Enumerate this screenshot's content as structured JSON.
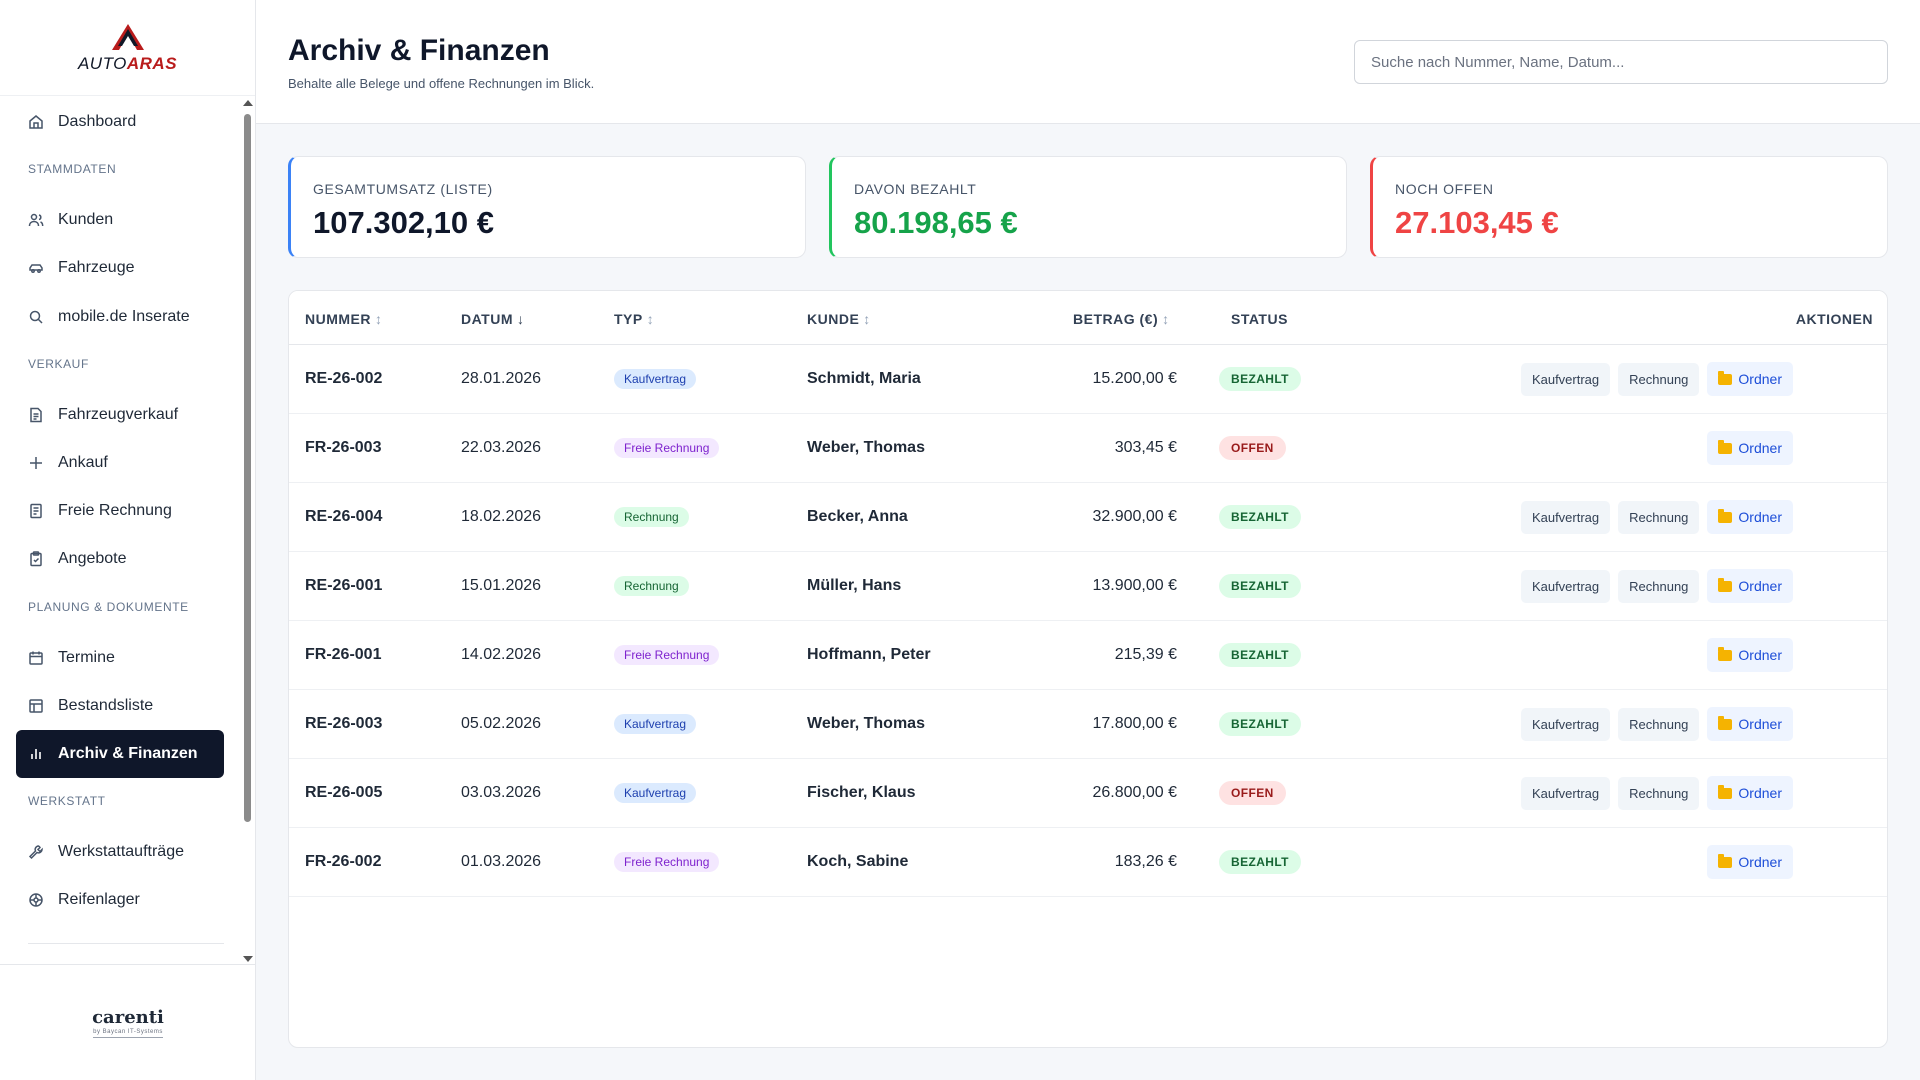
{
  "brand": {
    "logo_text_a": "AUTO",
    "logo_text_b": "ARAS",
    "footer_logo": "carenti",
    "footer_tagline": "by Baycan IT-Systems"
  },
  "sidebar": {
    "items": [
      {
        "label": "Dashboard",
        "icon": "home-icon"
      },
      {
        "section": "STAMMDATEN"
      },
      {
        "label": "Kunden",
        "icon": "users-icon"
      },
      {
        "label": "Fahrzeuge",
        "icon": "car-icon"
      },
      {
        "label": "mobile.de Inserate",
        "icon": "search-icon"
      },
      {
        "section": "VERKAUF"
      },
      {
        "label": "Fahrzeugverkauf",
        "icon": "document-icon"
      },
      {
        "label": "Ankauf",
        "icon": "plus-icon"
      },
      {
        "label": "Freie Rechnung",
        "icon": "receipt-icon"
      },
      {
        "label": "Angebote",
        "icon": "clipboard-icon"
      },
      {
        "section": "PLANUNG & DOKUMENTE"
      },
      {
        "label": "Termine",
        "icon": "calendar-icon"
      },
      {
        "label": "Bestandsliste",
        "icon": "table-icon"
      },
      {
        "label": "Archiv & Finanzen",
        "icon": "bar-chart-icon",
        "active": true
      },
      {
        "section": "WERKSTATT"
      },
      {
        "label": "Werkstattaufträge",
        "icon": "wrench-icon"
      },
      {
        "label": "Reifenlager",
        "icon": "tire-icon"
      }
    ]
  },
  "header": {
    "title": "Archiv & Finanzen",
    "subtitle": "Behalte alle Belege und offene Rechnungen im Blick.",
    "search_placeholder": "Suche nach Nummer, Name, Datum..."
  },
  "stats": [
    {
      "label": "GESAMTUMSATZ (LISTE)",
      "value": "107.302,10 €",
      "color": "#0f172a",
      "accent": "#3b82f6"
    },
    {
      "label": "DAVON BEZAHLT",
      "value": "80.198,65 €",
      "color": "#16a34a",
      "accent": "#22c55e"
    },
    {
      "label": "NOCH OFFEN",
      "value": "27.103,45 €",
      "color": "#ef4444",
      "accent": "#ef4444"
    }
  ],
  "table": {
    "columns": {
      "nummer": "NUMMER",
      "datum": "DATUM",
      "typ": "TYP",
      "kunde": "KUNDE",
      "betrag": "BETRAG (€)",
      "status": "STATUS",
      "aktionen": "AKTIONEN"
    },
    "sort_icons": {
      "neutral": "↕",
      "desc": "↓"
    },
    "action_labels": {
      "kaufvertrag": "Kaufvertrag",
      "rechnung": "Rechnung",
      "ordner": "Ordner"
    },
    "rows": [
      {
        "nummer": "RE-26-002",
        "datum": "28.01.2026",
        "typ": "Kaufvertrag",
        "typ_kind": "kauf",
        "kunde": "Schmidt, Maria",
        "betrag": "15.200,00 €",
        "status": "BEZAHLT",
        "status_kind": "paid",
        "docs": true
      },
      {
        "nummer": "FR-26-003",
        "datum": "22.03.2026",
        "typ": "Freie Rechnung",
        "typ_kind": "frei",
        "kunde": "Weber, Thomas",
        "betrag": "303,45 €",
        "status": "OFFEN",
        "status_kind": "open",
        "docs": false
      },
      {
        "nummer": "RE-26-004",
        "datum": "18.02.2026",
        "typ": "Rechnung",
        "typ_kind": "rech",
        "kunde": "Becker, Anna",
        "betrag": "32.900,00 €",
        "status": "BEZAHLT",
        "status_kind": "paid",
        "docs": true
      },
      {
        "nummer": "RE-26-001",
        "datum": "15.01.2026",
        "typ": "Rechnung",
        "typ_kind": "rech",
        "kunde": "Müller, Hans",
        "betrag": "13.900,00 €",
        "status": "BEZAHLT",
        "status_kind": "paid",
        "docs": true
      },
      {
        "nummer": "FR-26-001",
        "datum": "14.02.2026",
        "typ": "Freie Rechnung",
        "typ_kind": "frei",
        "kunde": "Hoffmann, Peter",
        "betrag": "215,39 €",
        "status": "BEZAHLT",
        "status_kind": "paid",
        "docs": false
      },
      {
        "nummer": "RE-26-003",
        "datum": "05.02.2026",
        "typ": "Kaufvertrag",
        "typ_kind": "kauf",
        "kunde": "Weber, Thomas",
        "betrag": "17.800,00 €",
        "status": "BEZAHLT",
        "status_kind": "paid",
        "docs": true
      },
      {
        "nummer": "RE-26-005",
        "datum": "03.03.2026",
        "typ": "Kaufvertrag",
        "typ_kind": "kauf",
        "kunde": "Fischer, Klaus",
        "betrag": "26.800,00 €",
        "status": "OFFEN",
        "status_kind": "open",
        "docs": true
      },
      {
        "nummer": "FR-26-002",
        "datum": "01.03.2026",
        "typ": "Freie Rechnung",
        "typ_kind": "frei",
        "kunde": "Koch, Sabine",
        "betrag": "183,26 €",
        "status": "BEZAHLT",
        "status_kind": "paid",
        "docs": false
      }
    ]
  }
}
